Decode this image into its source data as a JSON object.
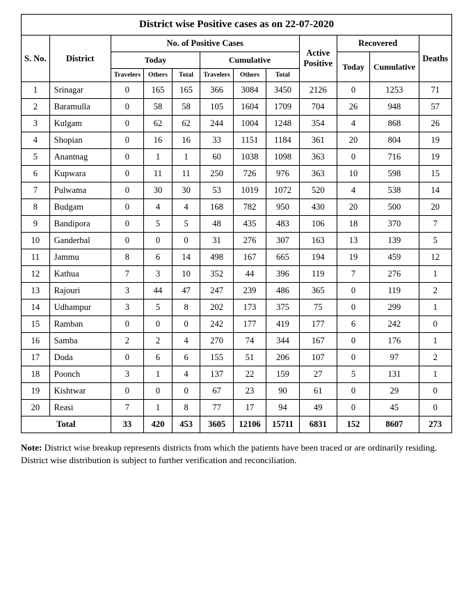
{
  "title": "District wise Positive cases as on 22-07-2020",
  "headers": {
    "sno": "S. No.",
    "district": "District",
    "positive": "No. of Positive Cases",
    "today": "Today",
    "cumulative": "Cumulative",
    "active": "Active Positive",
    "recovered": "Recovered",
    "rec_today": "Today",
    "rec_cum": "Cumulative",
    "deaths": "Deaths",
    "travelers": "Travelers",
    "others": "Others",
    "total": "Total"
  },
  "rows": [
    {
      "n": "1",
      "d": "Srinagar",
      "tt": "0",
      "to": "165",
      "tl": "165",
      "ct": "366",
      "co": "3084",
      "cl": "3450",
      "ap": "2126",
      "rt": "0",
      "rc": "1253",
      "dh": "71"
    },
    {
      "n": "2",
      "d": "Baramulla",
      "tt": "0",
      "to": "58",
      "tl": "58",
      "ct": "105",
      "co": "1604",
      "cl": "1709",
      "ap": "704",
      "rt": "26",
      "rc": "948",
      "dh": "57"
    },
    {
      "n": "3",
      "d": "Kulgam",
      "tt": "0",
      "to": "62",
      "tl": "62",
      "ct": "244",
      "co": "1004",
      "cl": "1248",
      "ap": "354",
      "rt": "4",
      "rc": "868",
      "dh": "26"
    },
    {
      "n": "4",
      "d": "Shopian",
      "tt": "0",
      "to": "16",
      "tl": "16",
      "ct": "33",
      "co": "1151",
      "cl": "1184",
      "ap": "361",
      "rt": "20",
      "rc": "804",
      "dh": "19"
    },
    {
      "n": "5",
      "d": "Anantnag",
      "tt": "0",
      "to": "1",
      "tl": "1",
      "ct": "60",
      "co": "1038",
      "cl": "1098",
      "ap": "363",
      "rt": "0",
      "rc": "716",
      "dh": "19"
    },
    {
      "n": "6",
      "d": "Kupwara",
      "tt": "0",
      "to": "11",
      "tl": "11",
      "ct": "250",
      "co": "726",
      "cl": "976",
      "ap": "363",
      "rt": "10",
      "rc": "598",
      "dh": "15"
    },
    {
      "n": "7",
      "d": "Pulwama",
      "tt": "0",
      "to": "30",
      "tl": "30",
      "ct": "53",
      "co": "1019",
      "cl": "1072",
      "ap": "520",
      "rt": "4",
      "rc": "538",
      "dh": "14"
    },
    {
      "n": "8",
      "d": "Budgam",
      "tt": "0",
      "to": "4",
      "tl": "4",
      "ct": "168",
      "co": "782",
      "cl": "950",
      "ap": "430",
      "rt": "20",
      "rc": "500",
      "dh": "20"
    },
    {
      "n": "9",
      "d": "Bandipora",
      "tt": "0",
      "to": "5",
      "tl": "5",
      "ct": "48",
      "co": "435",
      "cl": "483",
      "ap": "106",
      "rt": "18",
      "rc": "370",
      "dh": "7"
    },
    {
      "n": "10",
      "d": "Ganderbal",
      "tt": "0",
      "to": "0",
      "tl": "0",
      "ct": "31",
      "co": "276",
      "cl": "307",
      "ap": "163",
      "rt": "13",
      "rc": "139",
      "dh": "5"
    },
    {
      "n": "11",
      "d": "Jammu",
      "tt": "8",
      "to": "6",
      "tl": "14",
      "ct": "498",
      "co": "167",
      "cl": "665",
      "ap": "194",
      "rt": "19",
      "rc": "459",
      "dh": "12"
    },
    {
      "n": "12",
      "d": "Kathua",
      "tt": "7",
      "to": "3",
      "tl": "10",
      "ct": "352",
      "co": "44",
      "cl": "396",
      "ap": "119",
      "rt": "7",
      "rc": "276",
      "dh": "1"
    },
    {
      "n": "13",
      "d": "Rajouri",
      "tt": "3",
      "to": "44",
      "tl": "47",
      "ct": "247",
      "co": "239",
      "cl": "486",
      "ap": "365",
      "rt": "0",
      "rc": "119",
      "dh": "2"
    },
    {
      "n": "14",
      "d": "Udhampur",
      "tt": "3",
      "to": "5",
      "tl": "8",
      "ct": "202",
      "co": "173",
      "cl": "375",
      "ap": "75",
      "rt": "0",
      "rc": "299",
      "dh": "1"
    },
    {
      "n": "15",
      "d": "Ramban",
      "tt": "0",
      "to": "0",
      "tl": "0",
      "ct": "242",
      "co": "177",
      "cl": "419",
      "ap": "177",
      "rt": "6",
      "rc": "242",
      "dh": "0"
    },
    {
      "n": "16",
      "d": "Samba",
      "tt": "2",
      "to": "2",
      "tl": "4",
      "ct": "270",
      "co": "74",
      "cl": "344",
      "ap": "167",
      "rt": "0",
      "rc": "176",
      "dh": "1"
    },
    {
      "n": "17",
      "d": "Doda",
      "tt": "0",
      "to": "6",
      "tl": "6",
      "ct": "155",
      "co": "51",
      "cl": "206",
      "ap": "107",
      "rt": "0",
      "rc": "97",
      "dh": "2"
    },
    {
      "n": "18",
      "d": "Poonch",
      "tt": "3",
      "to": "1",
      "tl": "4",
      "ct": "137",
      "co": "22",
      "cl": "159",
      "ap": "27",
      "rt": "5",
      "rc": "131",
      "dh": "1"
    },
    {
      "n": "19",
      "d": "Kishtwar",
      "tt": "0",
      "to": "0",
      "tl": "0",
      "ct": "67",
      "co": "23",
      "cl": "90",
      "ap": "61",
      "rt": "0",
      "rc": "29",
      "dh": "0"
    },
    {
      "n": "20",
      "d": "Reasi",
      "tt": "7",
      "to": "1",
      "tl": "8",
      "ct": "77",
      "co": "17",
      "cl": "94",
      "ap": "49",
      "rt": "0",
      "rc": "45",
      "dh": "0"
    }
  ],
  "total": {
    "label": "Total",
    "tt": "33",
    "to": "420",
    "tl": "453",
    "ct": "3605",
    "co": "12106",
    "cl": "15711",
    "ap": "6831",
    "rt": "152",
    "rc": "8607",
    "dh": "273"
  },
  "note": {
    "label": "Note:",
    "line1": " District wise breakup represents districts from which the patients have been traced or are ordinarily residing.",
    "line2": "District wise distribution is subject to further verification and reconciliation."
  },
  "col_widths": [
    "6%",
    "13%",
    "7%",
    "6%",
    "6%",
    "7%",
    "7%",
    "7%",
    "8%",
    "7%",
    "9%",
    "7%"
  ]
}
